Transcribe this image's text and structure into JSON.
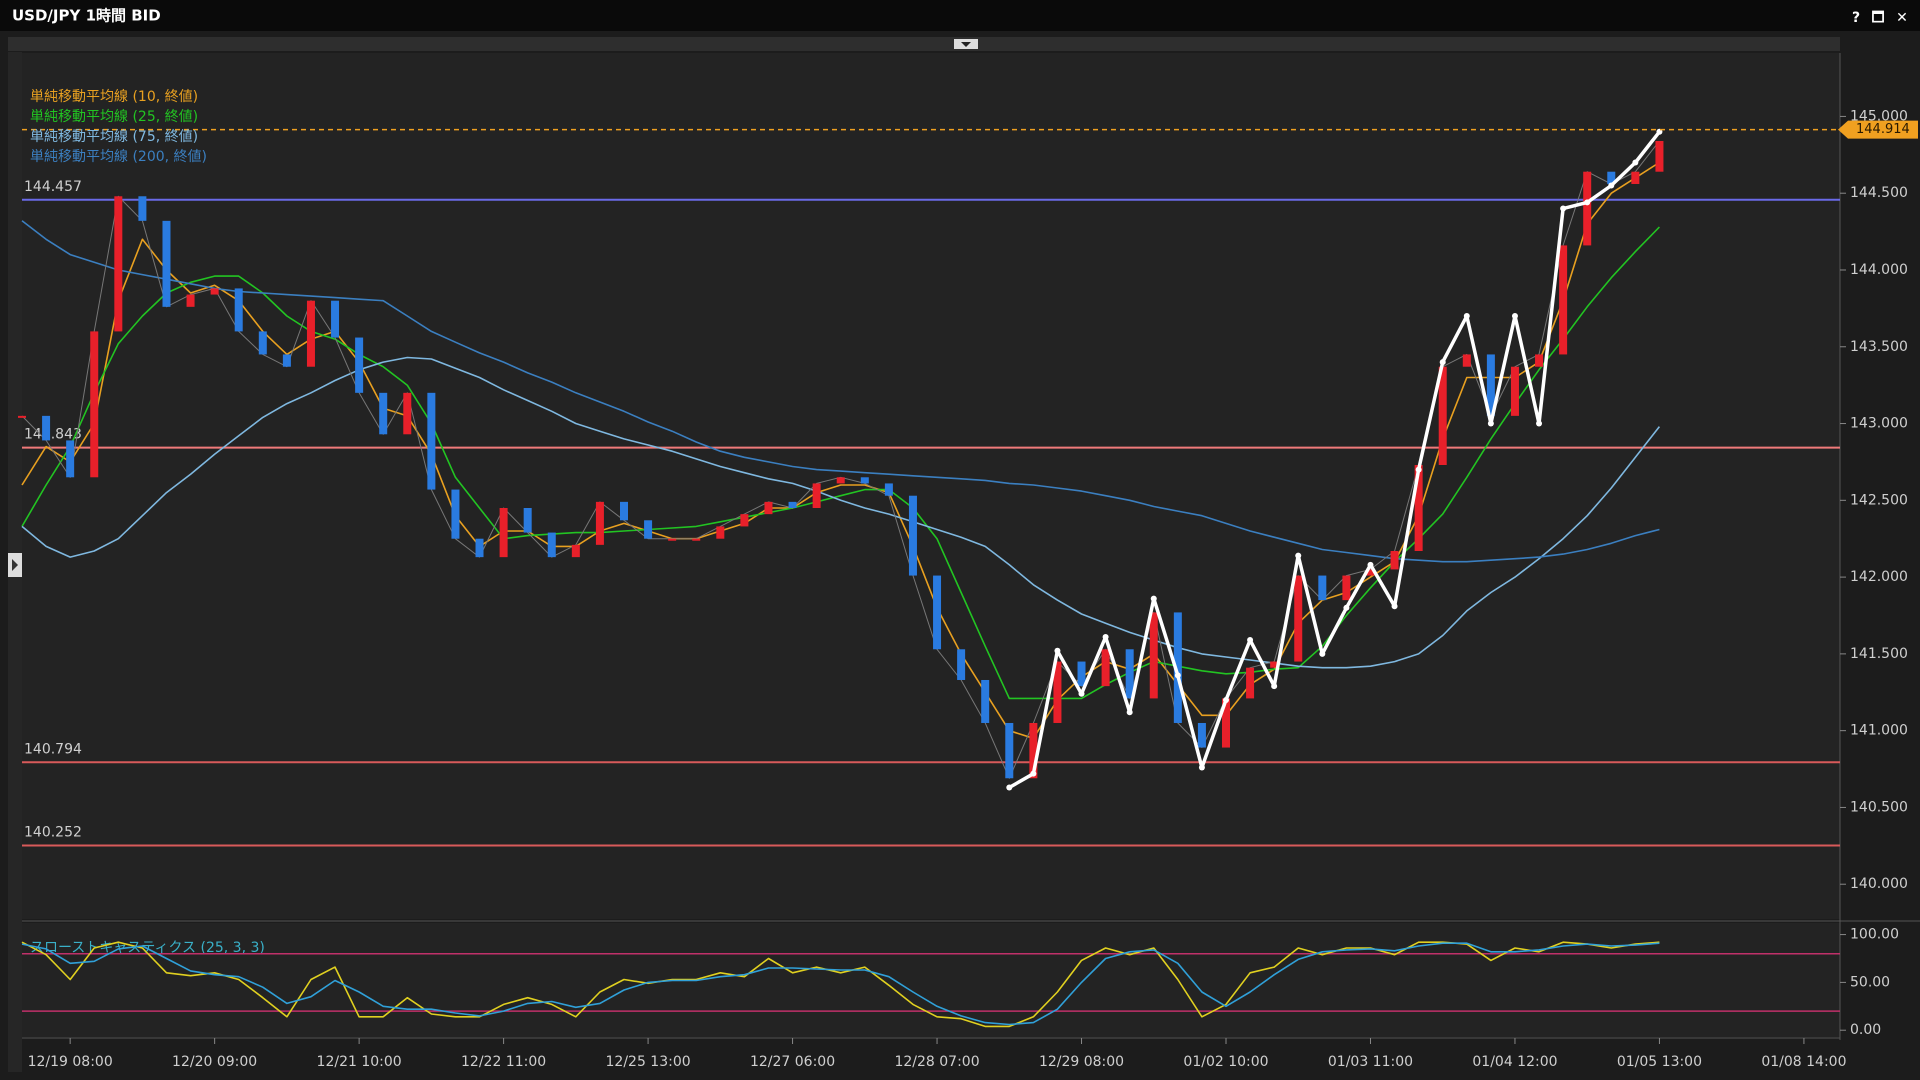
{
  "window": {
    "buttons": [
      "?",
      "🗖",
      "✕"
    ]
  },
  "chart_data": {
    "type": "line",
    "title": "USD/JPY 1時間 BID",
    "categories": [
      null,
      null,
      "12/19 08:00",
      null,
      null,
      null,
      null,
      null,
      "12/20 09:00",
      null,
      null,
      null,
      null,
      null,
      "12/21 10:00",
      null,
      null,
      null,
      null,
      null,
      "12/22 11:00",
      null,
      null,
      null,
      null,
      null,
      "12/25 13:00",
      null,
      null,
      null,
      null,
      null,
      "12/27 06:00",
      null,
      null,
      null,
      null,
      null,
      "12/28 07:00",
      null,
      null,
      null,
      null,
      null,
      "12/29 08:00",
      null,
      null,
      null,
      null,
      null,
      "01/02 10:00",
      null,
      null,
      null,
      null,
      null,
      "01/03 11:00",
      null,
      null,
      null,
      null,
      null,
      "01/04 12:00",
      null,
      null,
      null,
      null,
      null,
      "01/05 13:00",
      null,
      null,
      null,
      null,
      null,
      "01/08 14:00",
      null
    ],
    "ylim": [
      139.78,
      145.4
    ],
    "yticks": [
      {
        "value": 140,
        "label": "140.000"
      },
      {
        "value": 140.5,
        "label": "140.500"
      },
      {
        "value": 141,
        "label": "141.000"
      },
      {
        "value": 141.5,
        "label": "141.500"
      },
      {
        "value": 142,
        "label": "142.000"
      },
      {
        "value": 142.5,
        "label": "142.500"
      },
      {
        "value": 143,
        "label": "143.000"
      },
      {
        "value": 143.5,
        "label": "143.500"
      },
      {
        "value": 144,
        "label": "144.000"
      },
      {
        "value": 144.5,
        "label": "144.500"
      },
      {
        "value": 145,
        "label": "145.000"
      }
    ],
    "price": {
      "up_color": "#e8202a",
      "down_color": "#2a7be0",
      "values": [
        143.05,
        142.89,
        142.65,
        143.6,
        144.48,
        144.32,
        143.76,
        143.84,
        143.88,
        143.6,
        143.45,
        143.37,
        143.8,
        143.56,
        143.2,
        142.93,
        143.2,
        142.57,
        142.25,
        142.13,
        142.45,
        142.29,
        142.13,
        142.21,
        142.49,
        142.37,
        142.25,
        142.25,
        142.25,
        142.33,
        142.41,
        142.49,
        142.45,
        142.61,
        142.65,
        142.61,
        142.53,
        142.01,
        141.53,
        141.33,
        141.05,
        140.69,
        141.05,
        141.45,
        141.29,
        141.53,
        141.21,
        141.77,
        141.05,
        140.89,
        141.21,
        141.41,
        141.45,
        142.01,
        141.85,
        142.01,
        142.05,
        142.17,
        142.73,
        143.37,
        143.45,
        143.05,
        143.37,
        143.45,
        144.16,
        144.64,
        144.56,
        144.64,
        144.84,
        null,
        null,
        null,
        null,
        null,
        null,
        null
      ]
    },
    "series": [
      {
        "name": "単純移動平均線 (10, 終値)",
        "color": "#e8a020",
        "values": [
          142.6,
          142.85,
          142.75,
          143.0,
          143.8,
          144.2,
          144.0,
          143.85,
          143.9,
          143.8,
          143.6,
          143.45,
          143.55,
          143.6,
          143.4,
          143.1,
          143.05,
          142.8,
          142.4,
          142.2,
          142.3,
          142.3,
          142.2,
          142.2,
          142.3,
          142.35,
          142.3,
          142.25,
          142.25,
          142.3,
          142.35,
          142.45,
          142.45,
          142.55,
          142.6,
          142.6,
          142.55,
          142.2,
          141.8,
          141.5,
          141.25,
          141.0,
          140.95,
          141.2,
          141.35,
          141.45,
          141.4,
          141.5,
          141.3,
          141.1,
          141.1,
          141.3,
          141.4,
          141.7,
          141.85,
          141.9,
          142.0,
          142.1,
          142.4,
          142.9,
          143.3,
          143.3,
          143.3,
          143.4,
          143.8,
          144.3,
          144.5,
          144.6,
          144.7,
          null,
          null,
          null,
          null,
          null,
          null,
          null
        ]
      },
      {
        "name": "単純移動平均線 (25, 終値)",
        "color": "#22c422",
        "values": [
          142.33,
          142.6,
          142.85,
          143.2,
          143.52,
          143.7,
          143.85,
          143.92,
          143.96,
          143.96,
          143.85,
          143.7,
          143.6,
          143.55,
          143.45,
          143.37,
          143.25,
          143.0,
          142.65,
          142.45,
          142.25,
          142.27,
          142.28,
          142.29,
          142.29,
          142.3,
          142.31,
          142.32,
          142.33,
          142.36,
          142.39,
          142.42,
          142.45,
          142.49,
          142.53,
          142.57,
          142.57,
          142.45,
          142.25,
          141.9,
          141.55,
          141.21,
          141.21,
          141.21,
          141.21,
          141.3,
          141.38,
          141.45,
          141.42,
          141.39,
          141.37,
          141.38,
          141.4,
          141.41,
          141.55,
          141.75,
          141.93,
          142.1,
          142.25,
          142.41,
          142.65,
          142.9,
          143.13,
          143.35,
          143.55,
          143.76,
          143.95,
          144.12,
          144.28,
          null,
          null,
          null,
          null,
          null,
          null,
          null
        ]
      },
      {
        "name": "単純移動平均線 (75, 終値)",
        "color": "#7fb8e0",
        "values": [
          142.33,
          142.2,
          142.13,
          142.17,
          142.25,
          142.4,
          142.55,
          142.67,
          142.8,
          142.92,
          143.04,
          143.13,
          143.2,
          143.28,
          143.35,
          143.4,
          143.43,
          143.42,
          143.36,
          143.3,
          143.22,
          143.15,
          143.08,
          143.0,
          142.95,
          142.9,
          142.86,
          142.82,
          142.77,
          142.72,
          142.68,
          142.64,
          142.61,
          142.56,
          142.5,
          142.45,
          142.41,
          142.36,
          142.31,
          142.26,
          142.2,
          142.08,
          141.95,
          141.85,
          141.76,
          141.7,
          141.64,
          141.59,
          141.54,
          141.5,
          141.48,
          141.46,
          141.44,
          141.42,
          141.41,
          141.41,
          141.42,
          141.45,
          141.5,
          141.62,
          141.78,
          141.9,
          142.0,
          142.12,
          142.25,
          142.4,
          142.58,
          142.78,
          142.98,
          null,
          null,
          null,
          null,
          null,
          null,
          null
        ]
      },
      {
        "name": "単純移動平均線 (200, 終値)",
        "color": "#3b7fc0",
        "values": [
          144.32,
          144.2,
          144.1,
          144.05,
          144.0,
          143.97,
          143.94,
          143.91,
          143.88,
          143.86,
          143.85,
          143.84,
          143.83,
          143.82,
          143.81,
          143.8,
          143.7,
          143.6,
          143.53,
          143.46,
          143.4,
          143.33,
          143.27,
          143.2,
          143.14,
          143.08,
          143.01,
          142.95,
          142.88,
          142.82,
          142.78,
          142.75,
          142.72,
          142.7,
          142.69,
          142.68,
          142.67,
          142.66,
          142.65,
          142.64,
          142.63,
          142.61,
          142.6,
          142.58,
          142.56,
          142.53,
          142.5,
          142.46,
          142.43,
          142.4,
          142.35,
          142.3,
          142.26,
          142.22,
          142.18,
          142.16,
          142.14,
          142.12,
          142.11,
          142.1,
          142.1,
          142.11,
          142.12,
          142.13,
          142.15,
          142.18,
          142.22,
          142.27,
          142.31,
          null,
          null,
          null,
          null,
          null,
          null,
          null
        ]
      }
    ],
    "zigzag": {
      "color": "#ffffff",
      "values": [
        null,
        null,
        null,
        null,
        null,
        null,
        null,
        null,
        null,
        null,
        null,
        null,
        null,
        null,
        null,
        null,
        null,
        null,
        null,
        null,
        null,
        null,
        null,
        null,
        null,
        null,
        null,
        null,
        null,
        null,
        null,
        null,
        null,
        null,
        null,
        null,
        null,
        null,
        null,
        null,
        null,
        140.63,
        140.72,
        141.52,
        141.24,
        141.61,
        141.12,
        141.86,
        141.36,
        140.76,
        141.2,
        141.59,
        141.29,
        142.14,
        141.5,
        141.8,
        142.08,
        141.81,
        142.7,
        143.4,
        143.7,
        143.0,
        143.7,
        143.0,
        144.4,
        144.44,
        144.55,
        144.7,
        144.9,
        null,
        null,
        null,
        null,
        null,
        null,
        null
      ]
    },
    "hlines": [
      {
        "value": 144.457,
        "color": "#6a6ae8"
      },
      {
        "value": 142.843,
        "color": "#f07a7a"
      },
      {
        "value": 140.794,
        "color": "#d85a5a"
      },
      {
        "value": 140.252,
        "color": "#d85a5a"
      }
    ],
    "last_price": {
      "value": 144.914,
      "color": "#f0a020"
    },
    "stochastic": {
      "title": "スローストキャスティクス (25, 3, 3)",
      "ylim": [
        -5,
        110
      ],
      "yticks": [
        {
          "value": 0,
          "label": "0.00"
        },
        {
          "value": 50,
          "label": "50.00"
        },
        {
          "value": 100,
          "label": "100.00"
        }
      ],
      "levels": [
        80,
        20
      ],
      "level_color": "#c0306a",
      "series": [
        {
          "color": "#e0d020",
          "values": [
            92,
            79,
            53,
            86,
            92,
            86,
            60,
            57,
            60,
            53,
            34,
            14,
            53,
            66,
            14,
            14,
            34,
            17,
            14,
            14,
            27,
            34,
            27,
            14,
            40,
            53,
            49,
            53,
            53,
            60,
            56,
            75,
            60,
            66,
            60,
            66,
            47,
            27,
            14,
            12,
            4,
            4,
            14,
            40,
            73,
            86,
            79,
            86,
            53,
            14,
            27,
            60,
            66,
            86,
            79,
            86,
            86,
            79,
            92,
            92,
            90,
            73,
            86,
            82,
            92,
            90,
            86,
            90,
            92,
            null,
            null,
            null,
            null,
            null,
            null,
            null
          ]
        },
        {
          "color": "#30a0d8",
          "values": [
            90,
            85,
            70,
            72,
            85,
            88,
            75,
            62,
            58,
            56,
            45,
            28,
            35,
            52,
            40,
            25,
            22,
            22,
            18,
            15,
            20,
            28,
            30,
            24,
            28,
            42,
            50,
            52,
            52,
            56,
            58,
            65,
            65,
            64,
            63,
            63,
            56,
            40,
            25,
            15,
            8,
            6,
            8,
            22,
            50,
            75,
            82,
            84,
            70,
            40,
            25,
            40,
            58,
            74,
            82,
            84,
            85,
            83,
            88,
            91,
            91,
            82,
            82,
            84,
            88,
            90,
            88,
            89,
            91,
            null,
            null,
            null,
            null,
            null,
            null,
            null
          ]
        }
      ]
    }
  }
}
